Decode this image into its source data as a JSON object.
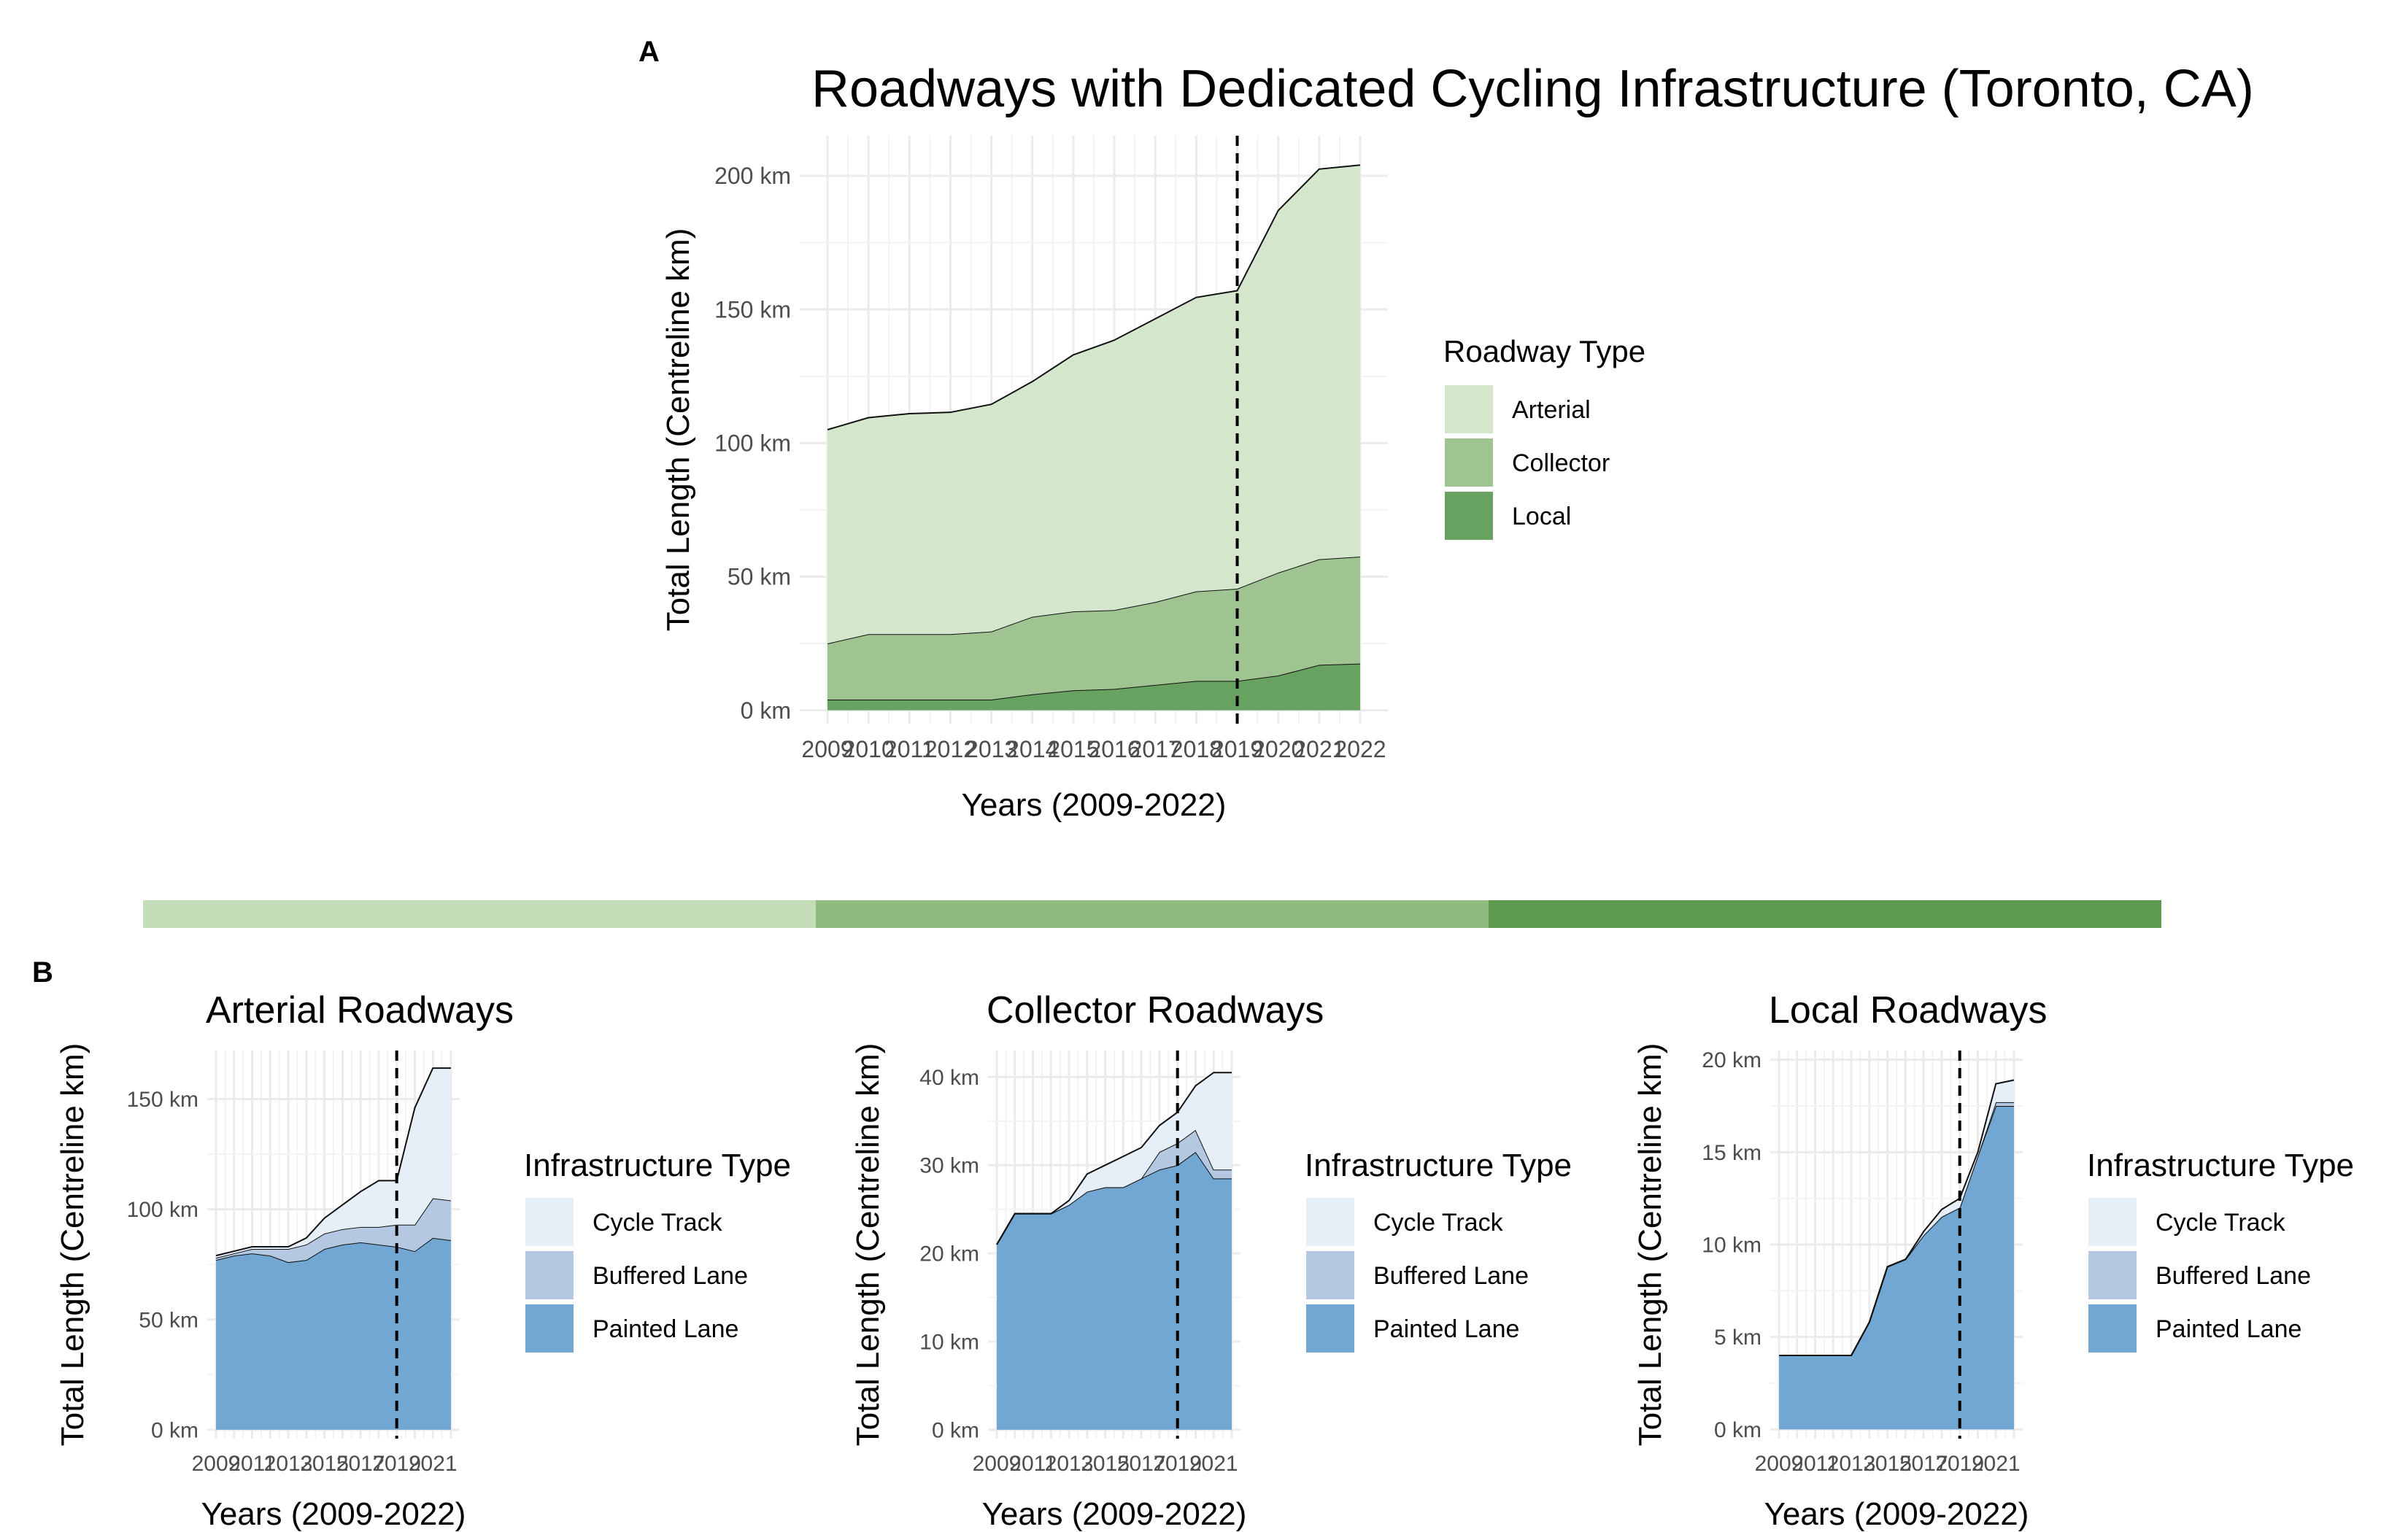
{
  "panel_labels": [
    "A",
    "B"
  ],
  "colors": {
    "arterial": "#d4e7cd",
    "collector": "#9fc492",
    "local": "#67a261",
    "cycle_track": "#e6eef8",
    "buffered_lane": "#b4c8e1",
    "painted_lane": "#71a7d2",
    "bar_arterial": "#c2ddb7",
    "bar_collector": "#8fbb7e",
    "bar_local": "#5c9a4e"
  },
  "chart_data": [
    {
      "id": "main",
      "type": "area",
      "stacked": true,
      "title": "Roadways with Dedicated Cycling Infrastructure (Toronto, CA)",
      "xlabel": "Years (2009-2022)",
      "ylabel": "Total Length (Centreline km)",
      "x": [
        2009,
        2010,
        2011,
        2012,
        2013,
        2014,
        2015,
        2016,
        2017,
        2018,
        2019,
        2020,
        2021,
        2022
      ],
      "xticks": [
        "2009",
        "2010",
        "2011",
        "2012",
        "2013",
        "2014",
        "2015",
        "2016",
        "2017",
        "2018",
        "2019",
        "2020",
        "2021",
        "2022"
      ],
      "ylim": [
        -5,
        215
      ],
      "yticks": [
        0,
        50,
        100,
        150,
        200
      ],
      "ytick_labels": [
        "0 km",
        "50 km",
        "100 km",
        "150 km",
        "200 km"
      ],
      "vline": 2019,
      "grid": true,
      "legend": {
        "title": "Roadway Type",
        "position": "right",
        "entries": [
          "Arterial",
          "Collector",
          "Local"
        ]
      },
      "series": [
        {
          "name": "Local",
          "values": [
            4,
            4,
            4,
            4,
            4,
            6,
            7.5,
            8,
            9.5,
            11,
            11,
            13,
            17,
            17.5
          ]
        },
        {
          "name": "Collector",
          "values": [
            21,
            24.5,
            24.5,
            24.5,
            25.5,
            29,
            29.5,
            29.5,
            31,
            33.5,
            34.5,
            38.5,
            39.5,
            40
          ]
        },
        {
          "name": "Arterial",
          "values": [
            80,
            81,
            82.5,
            83,
            85,
            88,
            96,
            101,
            106,
            110,
            111.5,
            135.5,
            146,
            146.5
          ]
        }
      ]
    },
    {
      "id": "arterial",
      "type": "area",
      "stacked": true,
      "title": "Arterial Roadways",
      "xlabel": "Years (2009-2022)",
      "ylabel": "Total Length (Centreline km)",
      "x": [
        2009,
        2010,
        2011,
        2012,
        2013,
        2014,
        2015,
        2016,
        2017,
        2018,
        2019,
        2020,
        2021,
        2022
      ],
      "xticks": [
        "2009",
        "2011",
        "2013",
        "2015",
        "2017",
        "2019",
        "2021"
      ],
      "ylim": [
        -4,
        172
      ],
      "yticks": [
        0,
        50,
        100,
        150
      ],
      "ytick_labels": [
        "0 km",
        "50 km",
        "100 km",
        "150 km"
      ],
      "vline": 2019,
      "grid": true,
      "legend": {
        "title": "Infrastructure Type",
        "position": "right",
        "entries": [
          "Cycle Track",
          "Buffered Lane",
          "Painted Lane"
        ]
      },
      "series": [
        {
          "name": "Painted Lane",
          "values": [
            77,
            79,
            80,
            79,
            76,
            77,
            82,
            84,
            85,
            84,
            83,
            81,
            87,
            86
          ]
        },
        {
          "name": "Buffered Lane",
          "values": [
            1,
            1,
            2,
            3,
            6,
            7,
            7,
            7,
            7,
            8,
            10,
            12,
            18,
            18
          ]
        },
        {
          "name": "Cycle Track",
          "values": [
            1,
            1,
            1,
            1,
            1,
            3,
            7,
            11,
            16,
            21,
            20,
            53,
            59,
            60
          ]
        }
      ]
    },
    {
      "id": "collector",
      "type": "area",
      "stacked": true,
      "title": "Collector Roadways",
      "xlabel": "Years (2009-2022)",
      "ylabel": "Total Length (Centreline km)",
      "x": [
        2009,
        2010,
        2011,
        2012,
        2013,
        2014,
        2015,
        2016,
        2017,
        2018,
        2019,
        2020,
        2021,
        2022
      ],
      "xticks": [
        "2009",
        "2011",
        "2013",
        "2015",
        "2017",
        "2019",
        "2021"
      ],
      "ylim": [
        -1,
        43
      ],
      "yticks": [
        0,
        10,
        20,
        30,
        40
      ],
      "ytick_labels": [
        "0 km",
        "10 km",
        "20 km",
        "30 km",
        "40 km"
      ],
      "vline": 2019,
      "grid": true,
      "legend": {
        "title": "Infrastructure Type",
        "position": "right",
        "entries": [
          "Cycle Track",
          "Buffered Lane",
          "Painted Lane"
        ]
      },
      "series": [
        {
          "name": "Painted Lane",
          "values": [
            21,
            24.5,
            24.5,
            24.5,
            25.5,
            27,
            27.5,
            27.5,
            28.5,
            29.5,
            30,
            31.5,
            28.5,
            28.5
          ]
        },
        {
          "name": "Buffered Lane",
          "values": [
            0,
            0,
            0,
            0,
            0,
            0,
            0,
            0,
            0,
            2,
            2.5,
            2.5,
            1,
            1
          ]
        },
        {
          "name": "Cycle Track",
          "values": [
            0,
            0,
            0,
            0,
            0.5,
            2,
            2.5,
            3.5,
            3.5,
            3,
            3.5,
            5,
            11,
            11
          ]
        }
      ]
    },
    {
      "id": "local",
      "type": "area",
      "stacked": true,
      "title": "Local Roadways",
      "xlabel": "Years (2009-2022)",
      "ylabel": "Total Length (Centreline km)",
      "x": [
        2009,
        2010,
        2011,
        2012,
        2013,
        2014,
        2015,
        2016,
        2017,
        2018,
        2019,
        2020,
        2021,
        2022
      ],
      "xticks": [
        "2009",
        "2011",
        "2013",
        "2015",
        "2017",
        "2019",
        "2021"
      ],
      "ylim": [
        -0.5,
        20.5
      ],
      "yticks": [
        0,
        5,
        10,
        15,
        20
      ],
      "ytick_labels": [
        "0 km",
        "5 km",
        "10 km",
        "15 km",
        "20 km"
      ],
      "vline": 2019,
      "grid": true,
      "legend": {
        "title": "Infrastructure Type",
        "position": "right",
        "entries": [
          "Cycle Track",
          "Buffered Lane",
          "Painted Lane"
        ]
      },
      "series": [
        {
          "name": "Painted Lane",
          "values": [
            4,
            4,
            4,
            4,
            4,
            5.8,
            8.8,
            9.2,
            10.5,
            11.5,
            12,
            14.8,
            17.5,
            17.5
          ]
        },
        {
          "name": "Buffered Lane",
          "values": [
            0,
            0,
            0,
            0,
            0,
            0,
            0,
            0,
            0,
            0,
            0,
            0,
            0.2,
            0.2
          ]
        },
        {
          "name": "Cycle Track",
          "values": [
            0,
            0,
            0,
            0,
            0,
            0,
            0,
            0,
            0.2,
            0.4,
            0.5,
            0.2,
            1,
            1.2
          ]
        }
      ]
    }
  ]
}
